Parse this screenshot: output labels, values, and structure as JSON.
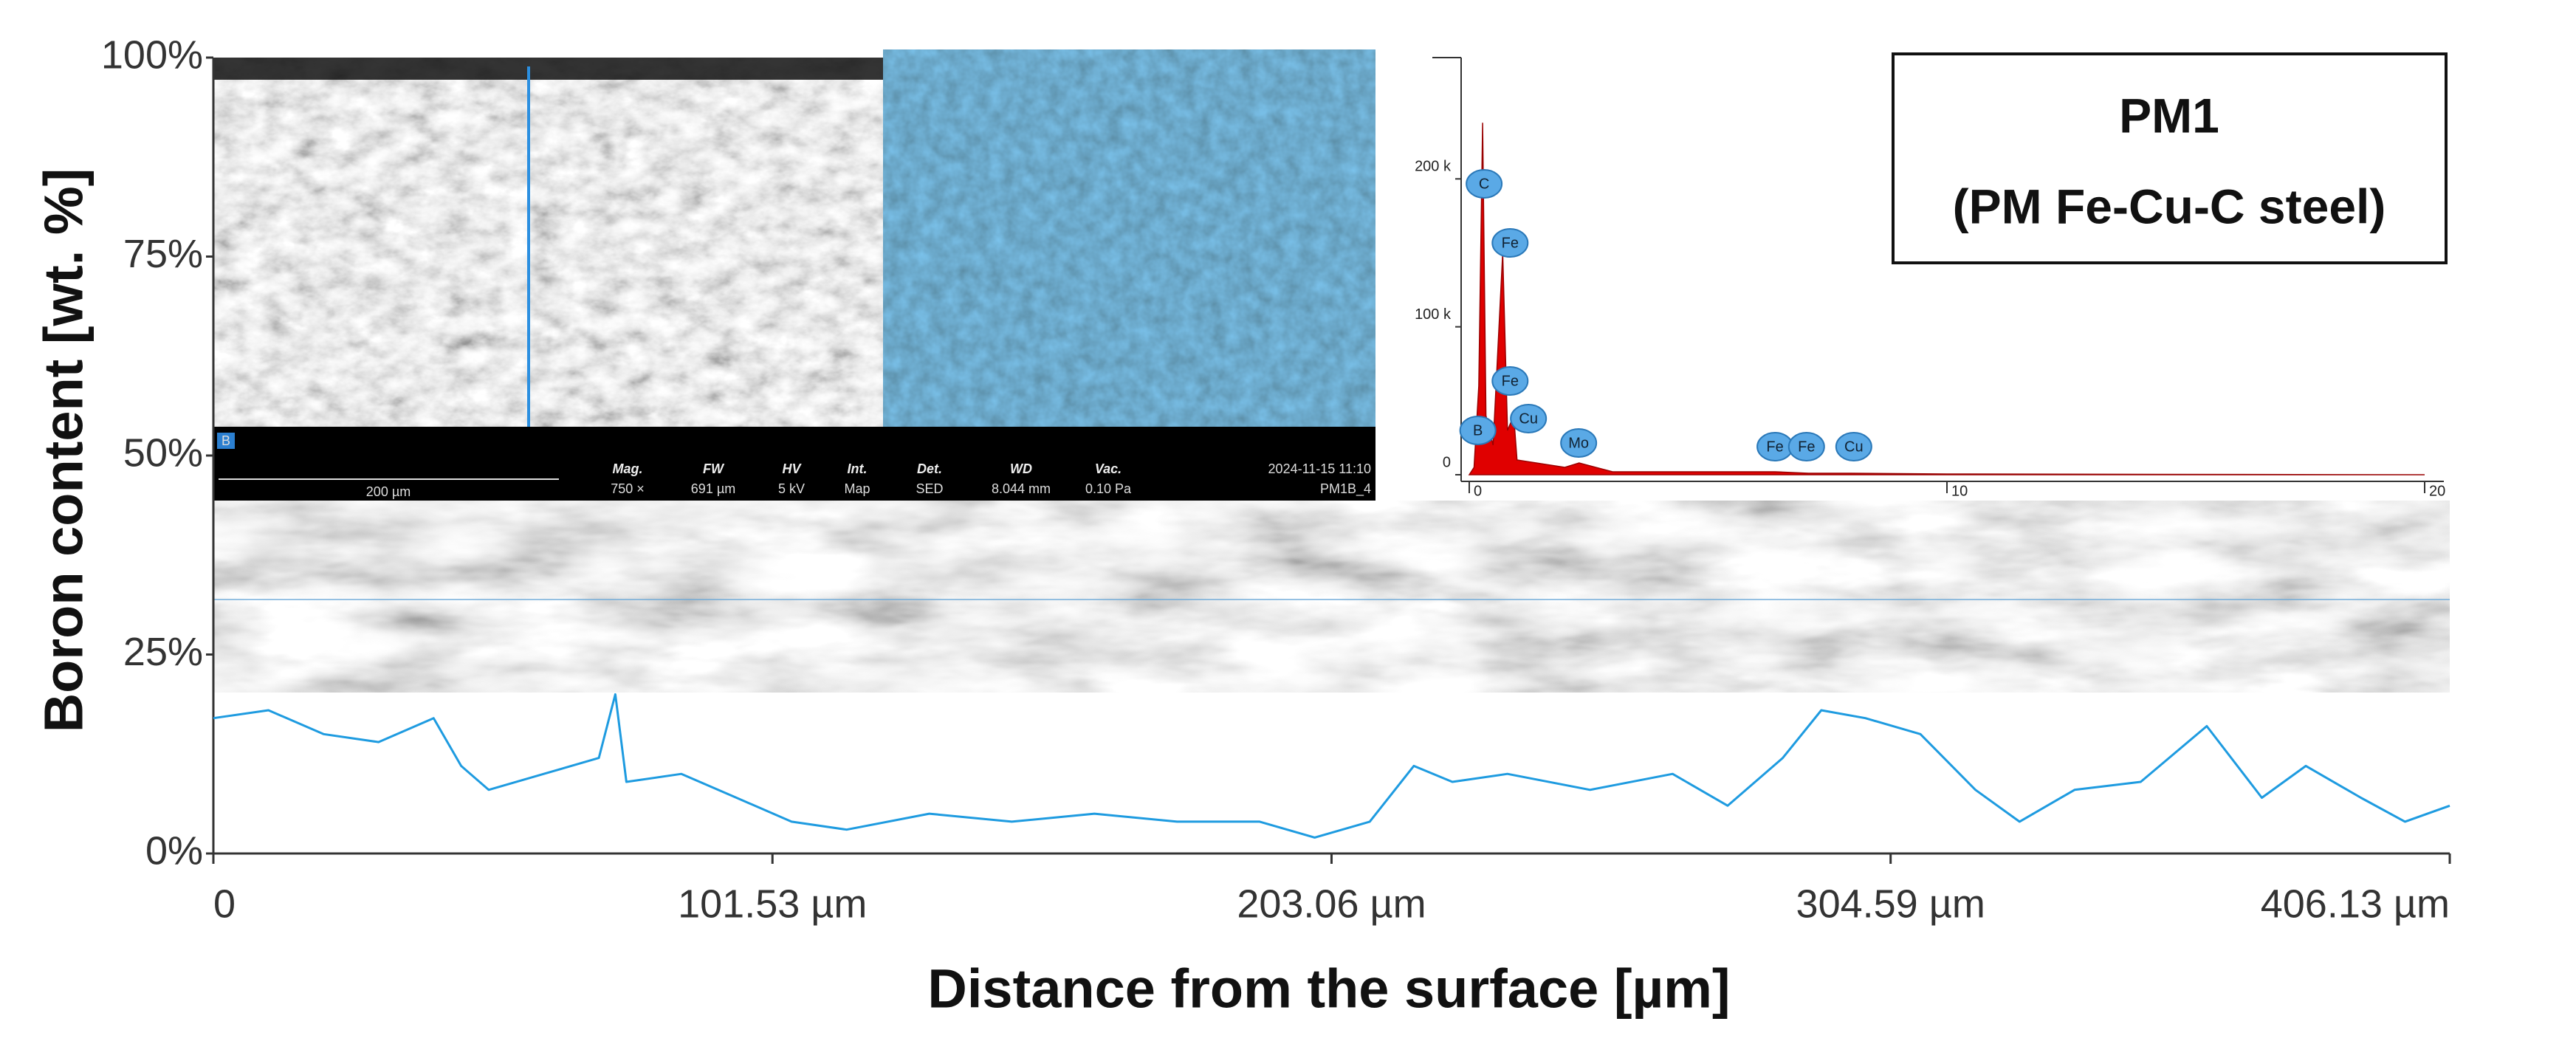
{
  "chart_data": [
    {
      "type": "line",
      "xlabel": "Distance from the surface [µm]",
      "ylabel": "Boron content [wt. %]",
      "xlim": [
        0,
        406.13
      ],
      "ylim": [
        0,
        100
      ],
      "xticks": [
        0,
        {
          "value": 101.53,
          "label": "101.53 µm"
        },
        {
          "value": 203.06,
          "label": "203.06 µm"
        },
        {
          "value": 304.59,
          "label": "304.59 µm"
        },
        {
          "value": 406.13,
          "label": "406.13 µm"
        }
      ],
      "yticks": [
        {
          "value": 0,
          "label": "0%"
        },
        {
          "value": 25,
          "label": "25%"
        },
        {
          "value": 50,
          "label": "50%"
        },
        {
          "value": 75,
          "label": "75%"
        },
        {
          "value": 100,
          "label": "100%"
        }
      ],
      "x": [
        0,
        10,
        20,
        30,
        40,
        45,
        50,
        60,
        70,
        73,
        75,
        85,
        95,
        105,
        115,
        130,
        145,
        160,
        175,
        190,
        200,
        210,
        218,
        225,
        235,
        250,
        265,
        275,
        285,
        292,
        300,
        310,
        320,
        328,
        338,
        350,
        362,
        372,
        380,
        390,
        398,
        406.13
      ],
      "values": [
        17,
        18,
        15,
        14,
        17,
        11,
        8,
        10,
        12,
        20,
        9,
        10,
        7,
        4,
        3,
        5,
        4,
        5,
        4,
        4,
        2,
        4,
        11,
        9,
        10,
        8,
        10,
        6,
        12,
        18,
        17,
        15,
        8,
        4,
        8,
        9,
        16,
        7,
        11,
        7,
        4,
        6
      ],
      "color": "#1e9be0",
      "grid": false,
      "micrograph": {
        "layer": "B",
        "scale": "200 µm",
        "headers": [
          "Mag.",
          "FW",
          "HV",
          "Int.",
          "Det.",
          "WD",
          "Vac."
        ],
        "readings": [
          "750 ×",
          "691 µm",
          "5 kV",
          "Map",
          "SED",
          "8.044 mm",
          "0.10 Pa"
        ],
        "date": "2024-11-15 11:10",
        "sample": "PM1B_4"
      },
      "label_box": [
        "PM1",
        "(PM Fe-Cu-C steel)"
      ]
    },
    {
      "type": "area",
      "xlim": [
        0,
        20
      ],
      "ylim": [
        0,
        282000
      ],
      "xticks": [
        0,
        10,
        20
      ],
      "yticks": [
        0,
        {
          "value": 100000,
          "label": "100 k"
        },
        {
          "value": 200000,
          "label": "200 k"
        }
      ],
      "x": [
        0,
        0.1,
        0.2,
        0.28,
        0.35,
        0.5,
        0.7,
        0.8,
        0.93,
        1.0,
        2.0,
        2.3,
        3,
        6.4,
        7.1,
        8,
        10,
        20
      ],
      "values": [
        0,
        5000,
        60000,
        238000,
        40000,
        20000,
        150000,
        30000,
        40000,
        10000,
        5000,
        8000,
        2000,
        2000,
        1000,
        1000,
        500,
        0
      ],
      "color": "#e00000",
      "peaks": {
        "labels": [
          "C",
          "Fe",
          "Fe",
          "B",
          "Cu",
          "Mo",
          "Fe",
          "Fe",
          "Cu"
        ],
        "x": [
          0.28,
          0.7,
          0.7,
          0.18,
          0.93,
          2.29,
          6.4,
          7.06,
          8.05
        ]
      }
    }
  ]
}
